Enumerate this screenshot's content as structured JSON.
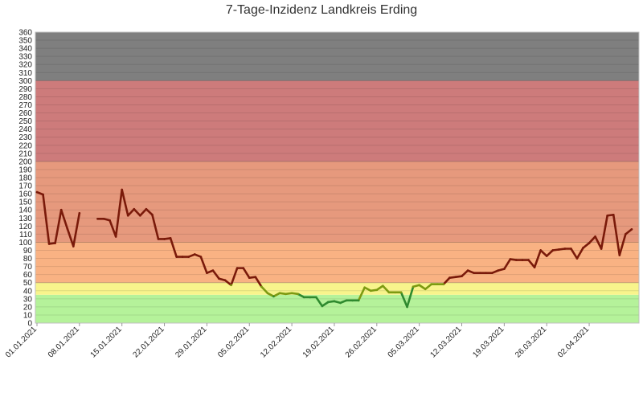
{
  "chart_data": {
    "type": "line",
    "title": "7-Tage-Inzidenz Landkreis Erding",
    "xlabel": "",
    "ylabel": "",
    "ylim": [
      0,
      360
    ],
    "y_ticks": [
      0,
      10,
      20,
      30,
      40,
      50,
      60,
      70,
      80,
      90,
      100,
      110,
      120,
      130,
      140,
      150,
      160,
      170,
      180,
      190,
      200,
      210,
      220,
      230,
      240,
      250,
      260,
      270,
      280,
      290,
      300,
      310,
      320,
      330,
      340,
      350,
      360
    ],
    "x_tick_labels": [
      "01.01.2021",
      "08.01.2021",
      "15.01.2021",
      "22.01.2021",
      "29.01.2021",
      "05.02.2021",
      "12.02.2021",
      "19.02.2021",
      "26.02.2021",
      "05.03.2021",
      "12.03.2021",
      "19.03.2021",
      "26.03.2021",
      "02.04.2021"
    ],
    "bands": [
      {
        "from": 0,
        "to": 35,
        "color": "#b5f29a"
      },
      {
        "from": 35,
        "to": 50,
        "color": "#f8f48c"
      },
      {
        "from": 50,
        "to": 100,
        "color": "#f9b283"
      },
      {
        "from": 100,
        "to": 200,
        "color": "#e6997d"
      },
      {
        "from": 200,
        "to": 300,
        "color": "#cd7b7b"
      },
      {
        "from": 300,
        "to": 360,
        "color": "#7f7f7f"
      }
    ],
    "line_colors": {
      "above_50": "#7a1a0a",
      "between_35_50": "#7d9a12",
      "below_35": "#2f8a2f"
    },
    "series": [
      {
        "values": [
          162,
          159,
          98,
          99,
          140,
          117,
          95,
          136,
          null,
          null,
          129,
          129,
          127,
          107,
          165,
          133,
          141,
          133,
          141,
          134,
          104,
          104,
          105,
          82,
          82,
          82,
          85,
          82,
          62,
          65,
          55,
          53,
          47,
          68,
          68,
          56,
          57,
          45,
          37,
          33,
          37,
          36,
          37,
          36,
          32,
          32,
          32,
          21,
          26,
          27,
          25,
          28,
          28,
          28,
          44,
          40,
          41,
          46,
          38,
          38,
          38,
          20,
          45,
          47,
          42,
          48,
          48,
          48,
          56,
          57,
          58,
          65,
          62,
          62,
          62,
          62,
          65,
          67,
          79,
          78,
          78,
          78,
          69,
          90,
          83,
          90,
          91,
          92,
          92,
          80,
          93,
          99,
          107,
          92,
          133,
          134,
          84,
          110,
          116
        ]
      }
    ]
  }
}
